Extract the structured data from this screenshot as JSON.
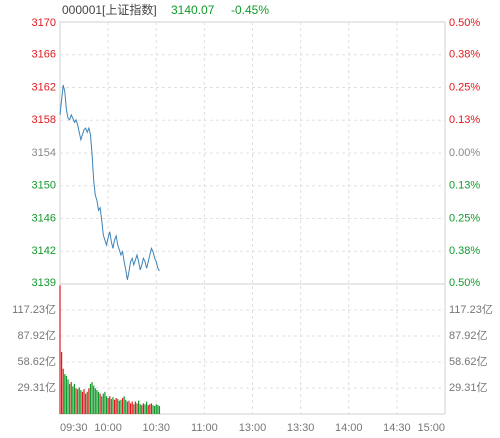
{
  "header": {
    "code": "000001[上证指数]",
    "price": "3140.07",
    "change": "-0.45%"
  },
  "chart_data": [
    {
      "type": "line",
      "x": [
        "09:30",
        "09:31",
        "09:32",
        "09:33",
        "09:34",
        "09:35",
        "09:36",
        "09:37",
        "09:38",
        "09:39",
        "09:40",
        "09:41",
        "09:42",
        "09:43",
        "09:44",
        "09:45",
        "09:46",
        "09:47",
        "09:48",
        "09:49",
        "09:50",
        "09:51",
        "09:52",
        "09:53",
        "09:54",
        "09:55",
        "09:56",
        "09:57",
        "09:58",
        "09:59",
        "10:00",
        "10:01",
        "10:02",
        "10:03",
        "10:04",
        "10:05",
        "10:06",
        "10:07",
        "10:08",
        "10:09",
        "10:10",
        "10:11",
        "10:12",
        "10:13",
        "10:14",
        "10:15",
        "10:16",
        "10:17",
        "10:18",
        "10:19",
        "10:20",
        "10:21",
        "10:22",
        "10:23",
        "10:24",
        "10:25",
        "10:26",
        "10:27",
        "10:28",
        "10:29",
        "10:30",
        "10:31",
        "10:32"
      ],
      "values": [
        3158.9,
        3160.7,
        3162.5,
        3161.7,
        3159.5,
        3158.5,
        3158.3,
        3158.9,
        3158.5,
        3158.0,
        3158.3,
        3157.7,
        3156.8,
        3155.9,
        3156.5,
        3157.1,
        3157.3,
        3156.8,
        3157.3,
        3156.5,
        3154.1,
        3151.0,
        3149.2,
        3148.6,
        3147.4,
        3147.7,
        3146.2,
        3144.4,
        3143.8,
        3143.2,
        3144.1,
        3144.8,
        3143.6,
        3142.8,
        3143.8,
        3144.3,
        3143.2,
        3142.6,
        3142.0,
        3142.4,
        3141.2,
        3140.2,
        3139.0,
        3140.0,
        3141.2,
        3141.6,
        3140.8,
        3141.4,
        3142.0,
        3141.2,
        3140.2,
        3140.8,
        3141.6,
        3141.2,
        3140.4,
        3141.2,
        3142.0,
        3142.8,
        3142.4,
        3141.6,
        3141.2,
        3140.4,
        3140.07
      ],
      "color": "#3d83b8",
      "ylim": [
        3138.5,
        3170.1
      ],
      "yticks": [
        {
          "value": 3170.1,
          "label": "3170"
        },
        {
          "value": 3166.15,
          "label": "3166"
        },
        {
          "value": 3162.2,
          "label": "3162"
        },
        {
          "value": 3158.25,
          "label": "3158"
        },
        {
          "value": 3154.3,
          "label": "3154"
        },
        {
          "value": 3150.35,
          "label": "3150"
        },
        {
          "value": 3146.4,
          "label": "3146"
        },
        {
          "value": 3142.45,
          "label": "3142"
        },
        {
          "value": 3138.5,
          "label": "3139"
        }
      ],
      "y2lim": [
        -0.5,
        0.5
      ],
      "y2ticks": [
        {
          "value": 0.5,
          "label": "0.50%"
        },
        {
          "value": 0.375,
          "label": "0.38%"
        },
        {
          "value": 0.25,
          "label": "0.25%"
        },
        {
          "value": 0.125,
          "label": "0.13%"
        },
        {
          "value": 0,
          "label": "0.00%"
        },
        {
          "value": -0.125,
          "label": "0.13%"
        },
        {
          "value": -0.25,
          "label": "0.25%"
        },
        {
          "value": -0.375,
          "label": "0.38%"
        },
        {
          "value": -0.5,
          "label": "0.50%"
        }
      ],
      "grid": true,
      "up_color": "#e0191e",
      "down_color": "#109a2a",
      "flat_color": "#888888"
    },
    {
      "type": "bar",
      "x": [
        "09:30",
        "09:31",
        "09:32",
        "09:33",
        "09:34",
        "09:35",
        "09:36",
        "09:37",
        "09:38",
        "09:39",
        "09:40",
        "09:41",
        "09:42",
        "09:43",
        "09:44",
        "09:45",
        "09:46",
        "09:47",
        "09:48",
        "09:49",
        "09:50",
        "09:51",
        "09:52",
        "09:53",
        "09:54",
        "09:55",
        "09:56",
        "09:57",
        "09:58",
        "09:59",
        "10:00",
        "10:01",
        "10:02",
        "10:03",
        "10:04",
        "10:05",
        "10:06",
        "10:07",
        "10:08",
        "10:09",
        "10:10",
        "10:11",
        "10:12",
        "10:13",
        "10:14",
        "10:15",
        "10:16",
        "10:17",
        "10:18",
        "10:19",
        "10:20",
        "10:21",
        "10:22",
        "10:23",
        "10:24",
        "10:25",
        "10:26",
        "10:27",
        "10:28",
        "10:29",
        "10:30",
        "10:31",
        "10:32"
      ],
      "values": [
        145,
        70,
        51,
        45,
        43,
        39,
        34,
        36,
        31,
        34,
        29,
        28,
        30,
        27,
        25,
        28,
        23,
        25,
        29,
        34,
        36,
        32,
        29,
        27,
        25,
        23,
        20,
        23,
        25,
        20,
        18,
        20,
        17,
        19,
        16,
        18,
        17,
        15,
        16,
        18,
        20,
        16,
        14,
        15,
        12,
        14,
        11,
        14,
        12,
        15,
        11,
        10,
        12,
        11,
        14,
        10,
        11,
        12,
        10,
        9,
        11,
        10,
        9
      ],
      "ylim": [
        0,
        146.54
      ],
      "yticks": [
        {
          "value": 117.23,
          "label": "117.23亿"
        },
        {
          "value": 87.92,
          "label": "87.92亿"
        },
        {
          "value": 58.62,
          "label": "58.62亿"
        },
        {
          "value": 29.31,
          "label": "29.31亿"
        }
      ],
      "xlim": [
        "09:30",
        "15:00"
      ],
      "xticks": [
        "09:30",
        "10:00",
        "10:30",
        "11:00",
        "13:00",
        "13:30",
        "14:00",
        "14:30",
        "15:00"
      ],
      "grid": true,
      "up_color": "#e0191e",
      "down_color": "#109a2a"
    }
  ]
}
